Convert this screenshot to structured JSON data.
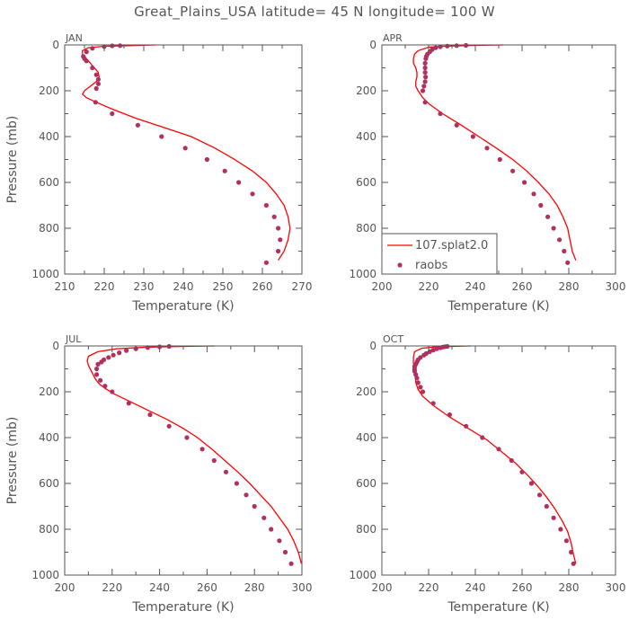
{
  "figure": {
    "title": "Great_Plains_USA   latitude= 45 N longitude= 100 W"
  },
  "colors": {
    "model_line": "#ff0000",
    "raobs_marker": "#b03060",
    "axis": "#555555"
  },
  "legend": {
    "location": "lower-left of APR panel",
    "entries": [
      {
        "label": "107.splat2.0",
        "style": "line"
      },
      {
        "label": "raobs",
        "style": "marker"
      }
    ]
  },
  "chart_data": [
    {
      "type": "line",
      "panel": "JAN",
      "xlabel": "Temperature (K)",
      "ylabel": "Pressure (mb)",
      "xlim": [
        210,
        270
      ],
      "ylim": [
        1000,
        0
      ],
      "y_inverted": true,
      "xticks": [
        210,
        220,
        230,
        240,
        250,
        260,
        270
      ],
      "yticks": [
        0,
        200,
        400,
        600,
        800,
        1000
      ],
      "series": [
        {
          "name": "107.splat2.0",
          "kind": "line",
          "points": [
            [
              233,
              0
            ],
            [
              226,
              3
            ],
            [
              220,
              6
            ],
            [
              216,
              12
            ],
            [
              214.5,
              25
            ],
            [
              214.5,
              40
            ],
            [
              215.5,
              60
            ],
            [
              216.5,
              80
            ],
            [
              217.5,
              100
            ],
            [
              218.5,
              120
            ],
            [
              218.7,
              140
            ],
            [
              218,
              160
            ],
            [
              216.5,
              180
            ],
            [
              215,
              200
            ],
            [
              214.5,
              215
            ],
            [
              215.5,
              230
            ],
            [
              218,
              250
            ],
            [
              222,
              280
            ],
            [
              228,
              320
            ],
            [
              235,
              360
            ],
            [
              242,
              400
            ],
            [
              248,
              450
            ],
            [
              253,
              500
            ],
            [
              257.5,
              550
            ],
            [
              261,
              600
            ],
            [
              263.5,
              650
            ],
            [
              265.5,
              700
            ],
            [
              266.5,
              750
            ],
            [
              267,
              800
            ],
            [
              266.5,
              850
            ],
            [
              265.5,
              900
            ],
            [
              264,
              940
            ]
          ]
        },
        {
          "name": "raobs",
          "kind": "scatter",
          "points": [
            [
              224,
              3
            ],
            [
              222,
              4
            ],
            [
              220,
              7
            ],
            [
              217,
              15
            ],
            [
              215.5,
              30
            ],
            [
              214.7,
              50
            ],
            [
              215,
              60
            ],
            [
              215.5,
              70
            ],
            [
              217,
              100
            ],
            [
              218,
              130
            ],
            [
              218.5,
              150
            ],
            [
              218.5,
              170
            ],
            [
              218,
              190
            ],
            [
              217.8,
              250
            ],
            [
              222,
              300
            ],
            [
              228.5,
              350
            ],
            [
              234.5,
              400
            ],
            [
              240.5,
              450
            ],
            [
              246,
              500
            ],
            [
              250.5,
              550
            ],
            [
              254,
              600
            ],
            [
              257.5,
              650
            ],
            [
              261,
              700
            ],
            [
              263,
              750
            ],
            [
              264,
              800
            ],
            [
              264.5,
              850
            ],
            [
              264,
              900
            ],
            [
              261,
              950
            ]
          ]
        }
      ]
    },
    {
      "type": "line",
      "panel": "APR",
      "xlabel": "Temperature (K)",
      "ylabel": "Pressure (mb)",
      "xlim": [
        200,
        300
      ],
      "ylim": [
        1000,
        0
      ],
      "y_inverted": true,
      "xticks": [
        200,
        220,
        240,
        260,
        280,
        300
      ],
      "yticks": [
        0,
        200,
        400,
        600,
        800,
        1000
      ],
      "series": [
        {
          "name": "107.splat2.0",
          "kind": "line",
          "points": [
            [
              252,
              0
            ],
            [
              240,
              2
            ],
            [
              228,
              5
            ],
            [
              220,
              10
            ],
            [
              215.5,
              25
            ],
            [
              214,
              40
            ],
            [
              213.5,
              60
            ],
            [
              213.5,
              80
            ],
            [
              214.5,
              100
            ],
            [
              215,
              120
            ],
            [
              215,
              140
            ],
            [
              214.5,
              160
            ],
            [
              214.5,
              180
            ],
            [
              215.5,
              200
            ],
            [
              217.5,
              230
            ],
            [
              220.5,
              260
            ],
            [
              226,
              300
            ],
            [
              234,
              350
            ],
            [
              241.5,
              400
            ],
            [
              249,
              450
            ],
            [
              256,
              500
            ],
            [
              262,
              550
            ],
            [
              267,
              600
            ],
            [
              271.5,
              650
            ],
            [
              275,
              700
            ],
            [
              277.5,
              750
            ],
            [
              279.5,
              800
            ],
            [
              280.5,
              850
            ],
            [
              281.5,
              900
            ],
            [
              283,
              940
            ]
          ]
        },
        {
          "name": "raobs",
          "kind": "scatter",
          "points": [
            [
              236,
              2
            ],
            [
              232,
              3
            ],
            [
              228,
              5
            ],
            [
              225,
              8
            ],
            [
              223,
              12
            ],
            [
              221.5,
              20
            ],
            [
              220.5,
              30
            ],
            [
              219.5,
              40
            ],
            [
              219,
              50
            ],
            [
              218.8,
              60
            ],
            [
              218.5,
              80
            ],
            [
              218.5,
              100
            ],
            [
              218.5,
              120
            ],
            [
              218.7,
              140
            ],
            [
              218.5,
              160
            ],
            [
              218,
              180
            ],
            [
              217.5,
              200
            ],
            [
              218.5,
              250
            ],
            [
              225,
              300
            ],
            [
              232,
              350
            ],
            [
              239,
              400
            ],
            [
              245,
              450
            ],
            [
              250.5,
              500
            ],
            [
              256,
              550
            ],
            [
              261,
              600
            ],
            [
              265,
              650
            ],
            [
              268,
              700
            ],
            [
              271,
              750
            ],
            [
              273.5,
              800
            ],
            [
              276,
              850
            ],
            [
              278,
              900
            ],
            [
              279.5,
              950
            ]
          ]
        }
      ]
    },
    {
      "type": "line",
      "panel": "JUL",
      "xlabel": "Temperature (K)",
      "ylabel": "Pressure (mb)",
      "xlim": [
        200,
        300
      ],
      "ylim": [
        1000,
        0
      ],
      "y_inverted": true,
      "xticks": [
        200,
        220,
        240,
        260,
        280,
        300
      ],
      "yticks": [
        0,
        200,
        400,
        600,
        800,
        1000
      ],
      "series": [
        {
          "name": "107.splat2.0",
          "kind": "line",
          "points": [
            [
              263,
              0
            ],
            [
              250,
              2
            ],
            [
              235,
              5
            ],
            [
              222,
              12
            ],
            [
              214,
              25
            ],
            [
              210,
              45
            ],
            [
              209.5,
              65
            ],
            [
              210,
              85
            ],
            [
              211,
              105
            ],
            [
              212,
              125
            ],
            [
              213,
              145
            ],
            [
              214.5,
              165
            ],
            [
              217,
              185
            ],
            [
              221,
              210
            ],
            [
              227,
              240
            ],
            [
              235,
              280
            ],
            [
              243,
              320
            ],
            [
              250,
              360
            ],
            [
              256,
              400
            ],
            [
              262,
              450
            ],
            [
              267.5,
              500
            ],
            [
              273,
              550
            ],
            [
              278,
              600
            ],
            [
              282.5,
              650
            ],
            [
              287,
              700
            ],
            [
              290.5,
              750
            ],
            [
              294,
              800
            ],
            [
              296.5,
              850
            ],
            [
              298.5,
              900
            ],
            [
              299.8,
              950
            ]
          ]
        },
        {
          "name": "raobs",
          "kind": "scatter",
          "points": [
            [
              244,
              2
            ],
            [
              240,
              4
            ],
            [
              235,
              7
            ],
            [
              230,
              12
            ],
            [
              226,
              20
            ],
            [
              223,
              30
            ],
            [
              220.5,
              40
            ],
            [
              218.5,
              50
            ],
            [
              216.5,
              60
            ],
            [
              215.5,
              70
            ],
            [
              214,
              80
            ],
            [
              213.5,
              100
            ],
            [
              213.5,
              125
            ],
            [
              215,
              150
            ],
            [
              217,
              175
            ],
            [
              220,
              200
            ],
            [
              227,
              250
            ],
            [
              236,
              300
            ],
            [
              244,
              350
            ],
            [
              251.5,
              400
            ],
            [
              258,
              450
            ],
            [
              263,
              500
            ],
            [
              268,
              550
            ],
            [
              272.5,
              600
            ],
            [
              276.5,
              650
            ],
            [
              280,
              700
            ],
            [
              284,
              750
            ],
            [
              287,
              800
            ],
            [
              290.5,
              850
            ],
            [
              293,
              900
            ],
            [
              295.5,
              950
            ]
          ]
        }
      ]
    },
    {
      "type": "line",
      "panel": "OCT",
      "xlabel": "Temperature (K)",
      "ylabel": "Pressure (mb)",
      "xlim": [
        200,
        300
      ],
      "ylim": [
        1000,
        0
      ],
      "y_inverted": true,
      "xticks": [
        200,
        220,
        240,
        260,
        280,
        300
      ],
      "yticks": [
        0,
        200,
        400,
        600,
        800,
        1000
      ],
      "series": [
        {
          "name": "107.splat2.0",
          "kind": "line",
          "points": [
            [
              238,
              0
            ],
            [
              230,
              2
            ],
            [
              222,
              5
            ],
            [
              217,
              10
            ],
            [
              214,
              25
            ],
            [
              213.5,
              50
            ],
            [
              213.5,
              75
            ],
            [
              214,
              100
            ],
            [
              214.3,
              130
            ],
            [
              214.5,
              160
            ],
            [
              215.5,
              190
            ],
            [
              217.5,
              220
            ],
            [
              222,
              260
            ],
            [
              229,
              310
            ],
            [
              237,
              360
            ],
            [
              245,
              410
            ],
            [
              251,
              460
            ],
            [
              257,
              510
            ],
            [
              262,
              560
            ],
            [
              266.5,
              610
            ],
            [
              270.5,
              660
            ],
            [
              274,
              710
            ],
            [
              277,
              760
            ],
            [
              279.5,
              810
            ],
            [
              281,
              860
            ],
            [
              282,
              910
            ],
            [
              283,
              950
            ]
          ]
        },
        {
          "name": "raobs",
          "kind": "scatter",
          "points": [
            [
              228,
              2
            ],
            [
              227,
              3
            ],
            [
              226,
              5
            ],
            [
              225,
              8
            ],
            [
              223.5,
              12
            ],
            [
              222,
              18
            ],
            [
              220.5,
              25
            ],
            [
              219,
              33
            ],
            [
              218,
              40
            ],
            [
              216.5,
              50
            ],
            [
              215.5,
              60
            ],
            [
              215,
              70
            ],
            [
              214.5,
              80
            ],
            [
              214,
              90
            ],
            [
              214,
              100
            ],
            [
              214,
              110
            ],
            [
              214.5,
              125
            ],
            [
              215,
              140
            ],
            [
              215.5,
              160
            ],
            [
              216.5,
              180
            ],
            [
              217.5,
              200
            ],
            [
              222,
              250
            ],
            [
              229,
              300
            ],
            [
              236,
              350
            ],
            [
              243,
              400
            ],
            [
              250,
              450
            ],
            [
              255.5,
              500
            ],
            [
              260,
              550
            ],
            [
              264,
              600
            ],
            [
              267.5,
              650
            ],
            [
              270.5,
              700
            ],
            [
              273.5,
              750
            ],
            [
              276.5,
              800
            ],
            [
              279,
              850
            ],
            [
              281,
              900
            ],
            [
              282,
              950
            ]
          ]
        }
      ]
    }
  ]
}
